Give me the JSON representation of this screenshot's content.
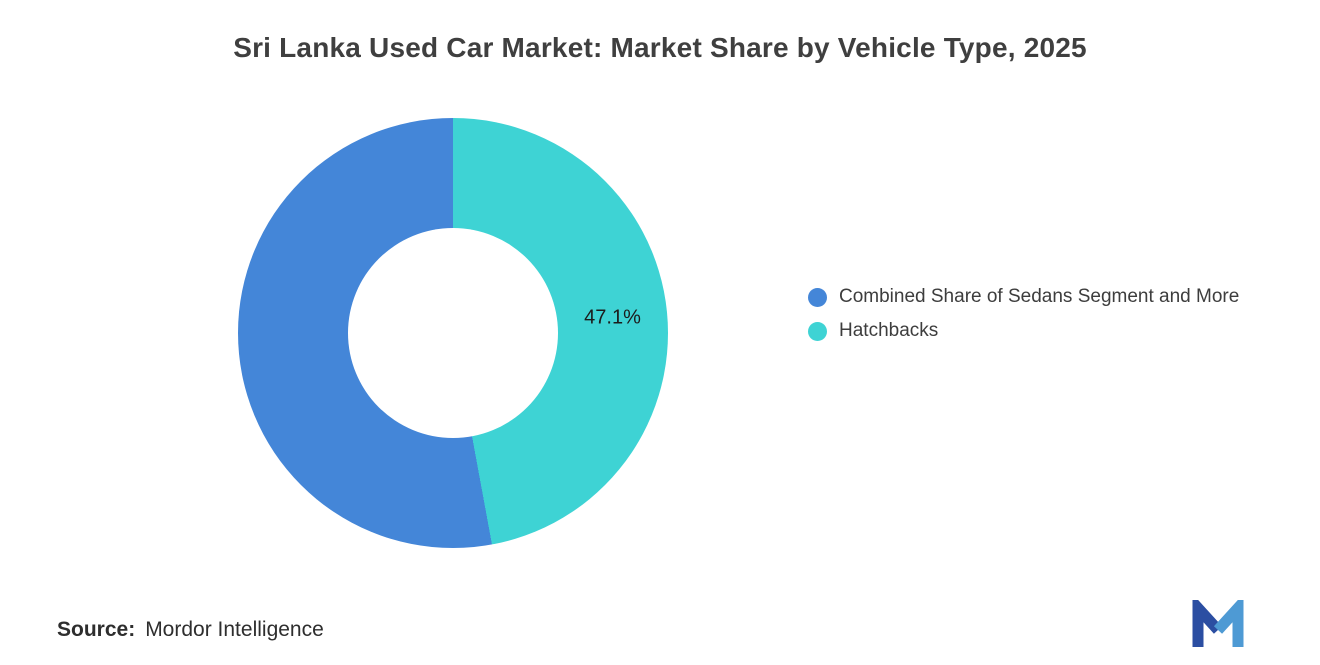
{
  "chart_data": {
    "type": "donut",
    "title": "Sri Lanka Used Car Market: Market Share by Vehicle Type, 2025",
    "slices": [
      {
        "label": "Combined Share of Sedans Segment and More",
        "value": 52.9,
        "color": "#4486D8",
        "data_label": ""
      },
      {
        "label": "Hatchbacks",
        "value": 47.1,
        "color": "#3ED3D4",
        "data_label": "47.1%"
      }
    ],
    "start_slice_at_top": "Hatchbacks",
    "direction": "clockwise",
    "start_angle_deg": 0,
    "inner_radius_ratio": 0.49,
    "legend_position": "right",
    "grid": false
  },
  "footer": {
    "source_label": "Source:",
    "source_value": "Mordor Intelligence"
  },
  "logo": {
    "name": "mordor-intelligence-logo",
    "color_dark": "#2B4EA2",
    "color_light": "#4E9AD4"
  }
}
